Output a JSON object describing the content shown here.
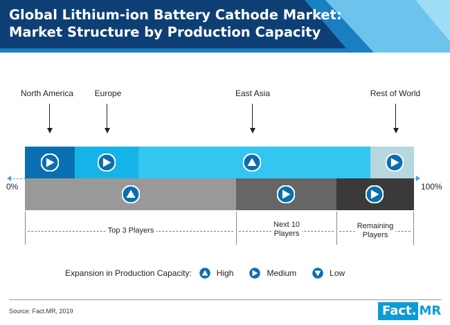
{
  "header": {
    "title_line1": "Global Lithium-ion Battery Cathode Market:",
    "title_line2": "Market Structure by Production Capacity",
    "colors": {
      "navy": "#0e3f74",
      "mid": "#1a7fc1",
      "light": "#6cc4ec"
    }
  },
  "regions": [
    {
      "label": "North America",
      "icon": "medium-icon",
      "color": "#0a6fb0"
    },
    {
      "label": "Europe",
      "icon": "medium-icon",
      "color": "#14b4e8"
    },
    {
      "label": "East Asia",
      "icon": "high-icon",
      "color": "#33c6f0"
    },
    {
      "label": "Rest of World",
      "icon": "medium-icon",
      "color": "#b5d7dd"
    }
  ],
  "axis": {
    "start_label": "0%",
    "end_label": "100%"
  },
  "player_groups": [
    {
      "label": "Top 3 Players",
      "icon": "high-icon",
      "color": "#999999"
    },
    {
      "label_line1": "Next 10",
      "label_line2": "Players",
      "icon": "medium-icon",
      "color": "#666666"
    },
    {
      "label_line1": "Remaining",
      "label_line2": "Players",
      "icon": "medium-icon",
      "color": "#3a3a3a"
    }
  ],
  "legend": {
    "title": "Expansion in Production Capacity:",
    "items": [
      {
        "label": "High",
        "icon": "high-icon"
      },
      {
        "label": "Medium",
        "icon": "medium-icon"
      },
      {
        "label": "Low",
        "icon": "low-icon"
      }
    ]
  },
  "footer": {
    "source": "Source: Fact.MR, 2019",
    "logo_part1": "Fact.",
    "logo_part2": "MR"
  }
}
